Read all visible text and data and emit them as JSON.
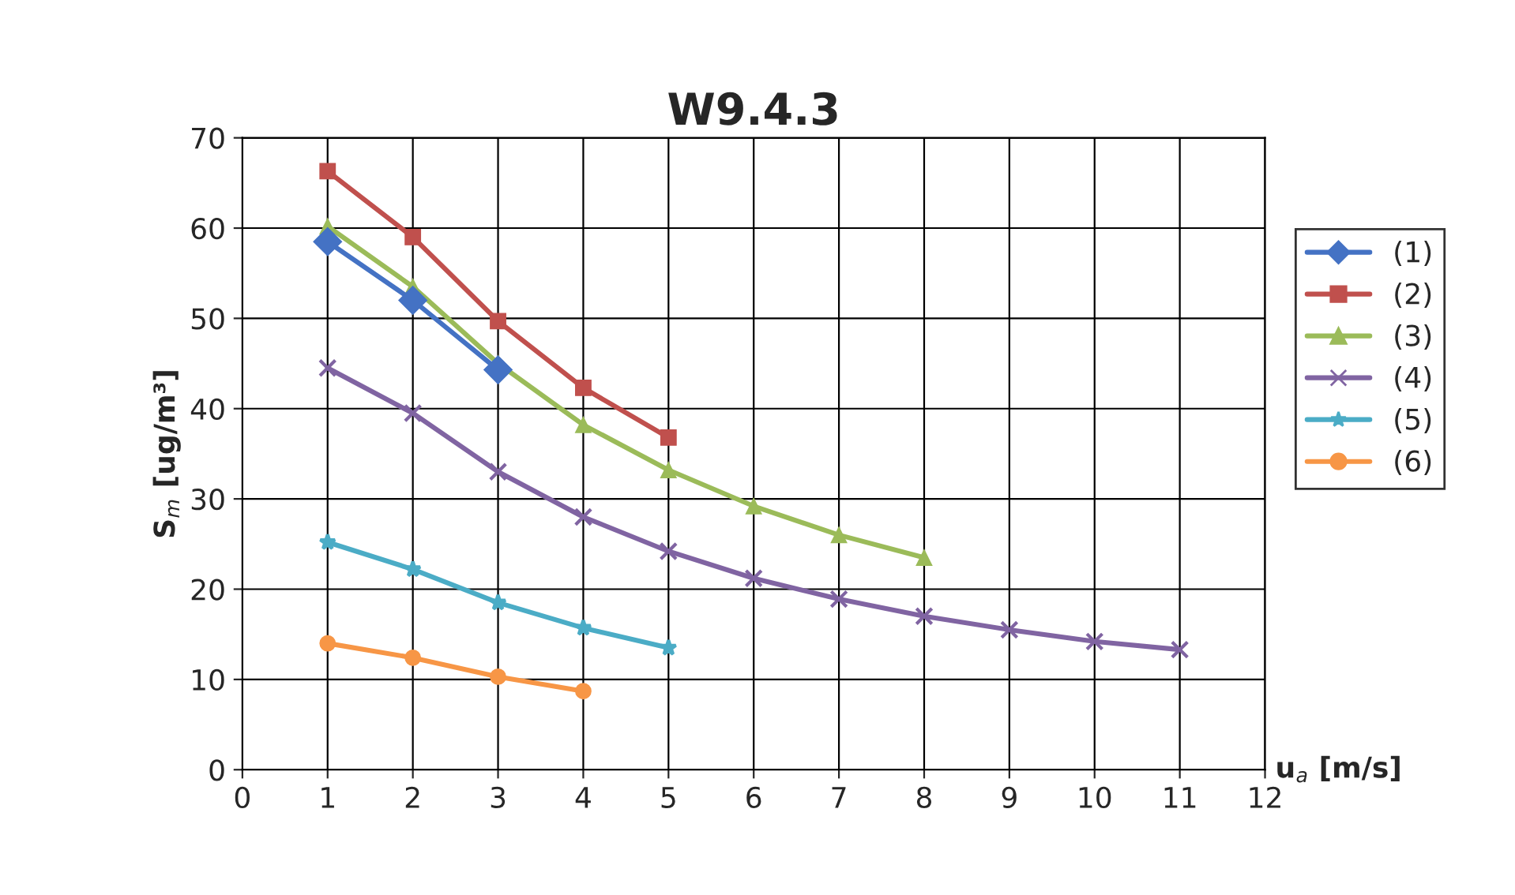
{
  "chart_data": {
    "type": "line",
    "title": "W9.4.3",
    "xlabel": "u$_{a}$ [m/s]",
    "ylabel": "S$_{m}$ [ug/m³]",
    "xlim": [
      0,
      12
    ],
    "xticks": [
      0,
      1,
      2,
      3,
      4,
      5,
      6,
      7,
      8,
      9,
      10,
      11,
      12
    ],
    "ylim": [
      0,
      70
    ],
    "yticks": [
      0,
      10,
      20,
      30,
      40,
      50,
      60,
      70
    ],
    "grid": true,
    "legend": "right",
    "line_style": "solid",
    "series": [
      {
        "name": "(1)",
        "color": "#4472c4",
        "marker": "diamond",
        "x": [
          1,
          2,
          3
        ],
        "values": [
          58.5,
          52,
          44.3
        ]
      },
      {
        "name": "(2)",
        "color": "#c0504d",
        "marker": "square",
        "x": [
          1,
          2,
          3,
          4,
          5
        ],
        "values": [
          66.3,
          59,
          49.7,
          42.3,
          36.8
        ]
      },
      {
        "name": "(3)",
        "color": "#9bbb59",
        "marker": "triangle",
        "x": [
          1,
          2,
          3,
          4,
          5,
          6,
          7,
          8
        ],
        "values": [
          60.2,
          53.5,
          45,
          38.2,
          33.2,
          29.2,
          26,
          23.5
        ]
      },
      {
        "name": "(4)",
        "color": "#8064a2",
        "marker": "cross",
        "x": [
          1,
          2,
          3,
          4,
          5,
          6,
          7,
          8,
          9,
          10,
          11
        ],
        "values": [
          44.5,
          39.5,
          33,
          28,
          24.2,
          21.2,
          18.9,
          17,
          15.5,
          14.2,
          13.3
        ]
      },
      {
        "name": "(5)",
        "color": "#4bacc6",
        "marker": "star",
        "x": [
          1,
          2,
          3,
          4,
          5
        ],
        "values": [
          25.2,
          22.2,
          18.5,
          15.7,
          13.5
        ]
      },
      {
        "name": "(6)",
        "color": "#f79646",
        "marker": "circle",
        "x": [
          1,
          2,
          3,
          4
        ],
        "values": [
          14,
          12.4,
          10.3,
          8.7
        ]
      }
    ]
  }
}
